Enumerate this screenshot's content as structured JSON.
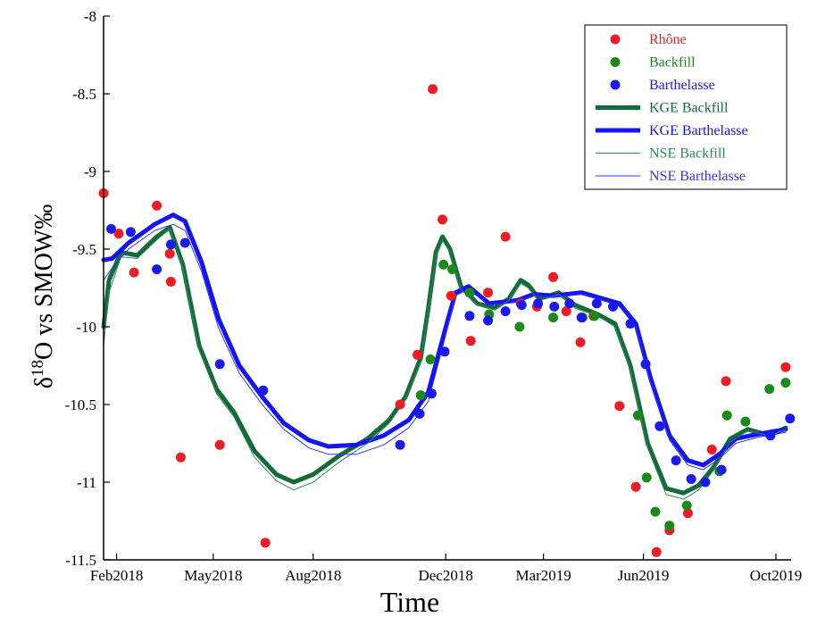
{
  "chart_data": {
    "type": "scatter",
    "xlabel": "Time",
    "ylabel": {
      "prefix": "δ",
      "superscript": "18",
      "suffix": "O vs SMOW‰"
    },
    "xlim": [
      "2018-01-20",
      "2019-10-15"
    ],
    "ylim": [
      -11.5,
      -8
    ],
    "x_ticks": [
      {
        "date": "2018-02-01",
        "label": "Feb2018"
      },
      {
        "date": "2018-05-01",
        "label": "May2018"
      },
      {
        "date": "2018-08-01",
        "label": "Aug2018"
      },
      {
        "date": "2018-12-01",
        "label": "Dec2018"
      },
      {
        "date": "2019-03-01",
        "label": "Mar2019"
      },
      {
        "date": "2019-06-01",
        "label": "Jun2019"
      },
      {
        "date": "2019-10-01",
        "label": "Oct2019"
      }
    ],
    "y_ticks": [
      -11.5,
      -11,
      -10.5,
      -10,
      -9.5,
      -9,
      -8.5,
      -8
    ],
    "y_tick_labels": [
      "-11.5",
      "-11",
      "-10.5",
      "-10",
      "-9.5",
      "-9",
      "-8.5",
      "-8"
    ],
    "grid": false,
    "legend_position": "top-right",
    "colors": {
      "rhone": "#ee1c25",
      "backfill": "#1a8a1a",
      "barthelasse": "#1a1aee",
      "kge_backfill": "#136b3a",
      "kge_barthelasse": "#1414f0",
      "nse_backfill": "#2a8a55",
      "nse_barthelasse": "#3333ee"
    },
    "legend": [
      {
        "label": "Rhône",
        "kind": "marker",
        "color": "#ee1c25"
      },
      {
        "label": "Backfill",
        "kind": "marker",
        "color": "#1a8a1a"
      },
      {
        "label": "Barthelasse",
        "kind": "marker",
        "color": "#1a1aee"
      },
      {
        "label": "KGE Backfill",
        "kind": "thick-line",
        "color": "#136b3a"
      },
      {
        "label": "KGE Barthelasse",
        "kind": "thick-line",
        "color": "#1414f0"
      },
      {
        "label": "NSE Backfill",
        "kind": "thin-line",
        "color": "#2a8a55"
      },
      {
        "label": "NSE Barthelasse",
        "kind": "thin-line",
        "color": "#3333ee"
      }
    ],
    "scatter_series": [
      {
        "name": "Rhône",
        "color": "#ee1c25",
        "points": [
          [
            "2018-01-20",
            -9.14
          ],
          [
            "2018-02-03",
            -9.4
          ],
          [
            "2018-02-17",
            -9.65
          ],
          [
            "2018-03-10",
            -9.22
          ],
          [
            "2018-03-22",
            -9.53
          ],
          [
            "2018-03-23",
            -9.71
          ],
          [
            "2018-04-01",
            -10.84
          ],
          [
            "2018-05-07",
            -10.76
          ],
          [
            "2018-06-18",
            -11.39
          ],
          [
            "2018-10-20",
            -10.5
          ],
          [
            "2018-11-05",
            -10.18
          ],
          [
            "2018-11-19",
            -8.47
          ],
          [
            "2018-11-28",
            -9.31
          ],
          [
            "2018-12-06",
            -9.8
          ],
          [
            "2018-12-24",
            -10.09
          ],
          [
            "2019-01-09",
            -9.78
          ],
          [
            "2019-01-25",
            -9.42
          ],
          [
            "2019-02-08",
            -9.85
          ],
          [
            "2019-02-23",
            -9.87
          ],
          [
            "2019-03-10",
            -9.68
          ],
          [
            "2019-03-22",
            -9.9
          ],
          [
            "2019-04-04",
            -10.1
          ],
          [
            "2019-04-16",
            -9.93
          ],
          [
            "2019-05-10",
            -10.51
          ],
          [
            "2019-05-25",
            -11.03
          ],
          [
            "2019-06-13",
            -11.45
          ],
          [
            "2019-06-25",
            -11.31
          ],
          [
            "2019-07-12",
            -11.2
          ],
          [
            "2019-08-03",
            -10.79
          ],
          [
            "2019-08-16",
            -10.35
          ],
          [
            "2019-10-10",
            -10.26
          ]
        ]
      },
      {
        "name": "Backfill",
        "color": "#1a8a1a",
        "points": [
          [
            "2018-11-08",
            -10.44
          ],
          [
            "2018-11-17",
            -10.21
          ],
          [
            "2018-11-29",
            -9.6
          ],
          [
            "2018-12-07",
            -9.63
          ],
          [
            "2018-12-23",
            -9.78
          ],
          [
            "2019-01-10",
            -9.92
          ],
          [
            "2019-02-07",
            -10.0
          ],
          [
            "2019-03-10",
            -9.94
          ],
          [
            "2019-04-06",
            -9.94
          ],
          [
            "2019-04-17",
            -9.93
          ],
          [
            "2019-05-27",
            -10.57
          ],
          [
            "2019-06-04",
            -10.97
          ],
          [
            "2019-06-12",
            -11.19
          ],
          [
            "2019-06-25",
            -11.28
          ],
          [
            "2019-07-11",
            -11.15
          ],
          [
            "2019-08-10",
            -10.93
          ],
          [
            "2019-08-17",
            -10.57
          ],
          [
            "2019-09-03",
            -10.61
          ],
          [
            "2019-09-25",
            -10.4
          ],
          [
            "2019-10-10",
            -10.36
          ]
        ]
      },
      {
        "name": "Barthelasse",
        "color": "#1a1aee",
        "points": [
          [
            "2018-01-27",
            -9.37
          ],
          [
            "2018-02-14",
            -9.39
          ],
          [
            "2018-03-10",
            -9.63
          ],
          [
            "2018-03-23",
            -9.47
          ],
          [
            "2018-04-05",
            -9.46
          ],
          [
            "2018-05-07",
            -10.24
          ],
          [
            "2018-06-16",
            -10.41
          ],
          [
            "2018-10-20",
            -10.76
          ],
          [
            "2018-11-07",
            -10.56
          ],
          [
            "2018-11-18",
            -10.43
          ],
          [
            "2018-11-30",
            -10.16
          ],
          [
            "2018-12-23",
            -9.93
          ],
          [
            "2019-01-09",
            -9.96
          ],
          [
            "2019-01-25",
            -9.9
          ],
          [
            "2019-02-09",
            -9.86
          ],
          [
            "2019-02-24",
            -9.85
          ],
          [
            "2019-03-11",
            -9.87
          ],
          [
            "2019-03-25",
            -9.85
          ],
          [
            "2019-04-05",
            -9.94
          ],
          [
            "2019-04-19",
            -9.85
          ],
          [
            "2019-05-04",
            -9.87
          ],
          [
            "2019-05-20",
            -9.98
          ],
          [
            "2019-06-03",
            -10.24
          ],
          [
            "2019-06-16",
            -10.64
          ],
          [
            "2019-07-01",
            -10.86
          ],
          [
            "2019-07-15",
            -10.98
          ],
          [
            "2019-07-28",
            -11.0
          ],
          [
            "2019-08-12",
            -10.92
          ],
          [
            "2019-09-26",
            -10.7
          ],
          [
            "2019-10-14",
            -10.59
          ]
        ]
      }
    ],
    "line_series": [
      {
        "name": "KGE Backfill",
        "color": "#136b3a",
        "width": 5,
        "points": [
          [
            "2018-01-20",
            -10.0
          ],
          [
            "2018-01-25",
            -9.7
          ],
          [
            "2018-02-05",
            -9.52
          ],
          [
            "2018-02-20",
            -9.54
          ],
          [
            "2018-03-10",
            -9.42
          ],
          [
            "2018-03-22",
            -9.36
          ],
          [
            "2018-04-03",
            -9.6
          ],
          [
            "2018-04-18",
            -10.12
          ],
          [
            "2018-05-04",
            -10.4
          ],
          [
            "2018-05-20",
            -10.55
          ],
          [
            "2018-06-08",
            -10.8
          ],
          [
            "2018-06-28",
            -10.95
          ],
          [
            "2018-07-14",
            -11.0
          ],
          [
            "2018-08-01",
            -10.95
          ],
          [
            "2018-08-25",
            -10.83
          ],
          [
            "2018-09-20",
            -10.72
          ],
          [
            "2018-10-10",
            -10.6
          ],
          [
            "2018-10-25",
            -10.45
          ],
          [
            "2018-11-08",
            -10.2
          ],
          [
            "2018-11-15",
            -9.88
          ],
          [
            "2018-11-22",
            -9.52
          ],
          [
            "2018-11-28",
            -9.42
          ],
          [
            "2018-12-05",
            -9.5
          ],
          [
            "2018-12-15",
            -9.74
          ],
          [
            "2018-12-30",
            -9.85
          ],
          [
            "2019-01-15",
            -9.88
          ],
          [
            "2019-01-28",
            -9.82
          ],
          [
            "2019-02-08",
            -9.7
          ],
          [
            "2019-02-15",
            -9.73
          ],
          [
            "2019-02-25",
            -9.82
          ],
          [
            "2019-03-15",
            -9.78
          ],
          [
            "2019-03-30",
            -9.86
          ],
          [
            "2019-04-20",
            -9.92
          ],
          [
            "2019-05-06",
            -9.98
          ],
          [
            "2019-05-20",
            -10.25
          ],
          [
            "2019-06-05",
            -10.75
          ],
          [
            "2019-06-22",
            -11.04
          ],
          [
            "2019-07-08",
            -11.07
          ],
          [
            "2019-07-22",
            -11.02
          ],
          [
            "2019-08-05",
            -10.9
          ],
          [
            "2019-08-20",
            -10.72
          ],
          [
            "2019-09-05",
            -10.66
          ],
          [
            "2019-09-25",
            -10.7
          ],
          [
            "2019-10-10",
            -10.65
          ]
        ]
      },
      {
        "name": "KGE Barthelasse",
        "color": "#1414f0",
        "width": 5,
        "points": [
          [
            "2018-01-20",
            -9.57
          ],
          [
            "2018-01-28",
            -9.56
          ],
          [
            "2018-02-12",
            -9.46
          ],
          [
            "2018-03-08",
            -9.34
          ],
          [
            "2018-03-25",
            -9.28
          ],
          [
            "2018-04-05",
            -9.32
          ],
          [
            "2018-04-20",
            -9.58
          ],
          [
            "2018-05-06",
            -9.95
          ],
          [
            "2018-05-25",
            -10.25
          ],
          [
            "2018-06-15",
            -10.45
          ],
          [
            "2018-07-05",
            -10.62
          ],
          [
            "2018-07-28",
            -10.73
          ],
          [
            "2018-08-15",
            -10.77
          ],
          [
            "2018-09-10",
            -10.76
          ],
          [
            "2018-10-05",
            -10.7
          ],
          [
            "2018-10-28",
            -10.6
          ],
          [
            "2018-11-15",
            -10.42
          ],
          [
            "2018-11-30",
            -10.03
          ],
          [
            "2018-12-10",
            -9.78
          ],
          [
            "2018-12-22",
            -9.74
          ],
          [
            "2019-01-10",
            -9.85
          ],
          [
            "2019-02-05",
            -9.83
          ],
          [
            "2019-02-20",
            -9.79
          ],
          [
            "2019-03-10",
            -9.8
          ],
          [
            "2019-04-05",
            -9.78
          ],
          [
            "2019-04-25",
            -9.82
          ],
          [
            "2019-05-10",
            -9.85
          ],
          [
            "2019-05-25",
            -9.98
          ],
          [
            "2019-06-08",
            -10.34
          ],
          [
            "2019-06-25",
            -10.7
          ],
          [
            "2019-07-12",
            -10.86
          ],
          [
            "2019-07-26",
            -10.89
          ],
          [
            "2019-08-10",
            -10.82
          ],
          [
            "2019-08-25",
            -10.72
          ],
          [
            "2019-09-15",
            -10.69
          ],
          [
            "2019-10-10",
            -10.66
          ]
        ]
      },
      {
        "name": "NSE Backfill",
        "color": "#2a8a55",
        "width": 1,
        "points": [
          [
            "2018-01-20",
            -10.12
          ],
          [
            "2018-01-25",
            -9.78
          ],
          [
            "2018-02-05",
            -9.55
          ],
          [
            "2018-02-20",
            -9.56
          ],
          [
            "2018-03-10",
            -9.44
          ],
          [
            "2018-03-22",
            -9.37
          ],
          [
            "2018-04-03",
            -9.62
          ],
          [
            "2018-04-18",
            -10.15
          ],
          [
            "2018-05-04",
            -10.43
          ],
          [
            "2018-05-20",
            -10.58
          ],
          [
            "2018-06-08",
            -10.84
          ],
          [
            "2018-06-28",
            -10.99
          ],
          [
            "2018-07-14",
            -11.05
          ],
          [
            "2018-08-01",
            -11.0
          ],
          [
            "2018-08-25",
            -10.87
          ],
          [
            "2018-09-20",
            -10.75
          ],
          [
            "2018-10-10",
            -10.62
          ],
          [
            "2018-10-25",
            -10.47
          ],
          [
            "2018-11-08",
            -10.22
          ],
          [
            "2018-11-15",
            -9.9
          ],
          [
            "2018-11-22",
            -9.54
          ],
          [
            "2018-11-28",
            -9.44
          ],
          [
            "2018-12-05",
            -9.52
          ],
          [
            "2018-12-15",
            -9.76
          ],
          [
            "2018-12-30",
            -9.86
          ],
          [
            "2019-01-15",
            -9.89
          ],
          [
            "2019-01-28",
            -9.83
          ],
          [
            "2019-02-08",
            -9.72
          ],
          [
            "2019-02-15",
            -9.75
          ],
          [
            "2019-02-25",
            -9.83
          ],
          [
            "2019-03-15",
            -9.79
          ],
          [
            "2019-03-30",
            -9.88
          ],
          [
            "2019-04-20",
            -9.93
          ],
          [
            "2019-05-06",
            -10.0
          ],
          [
            "2019-05-20",
            -10.28
          ],
          [
            "2019-06-05",
            -10.78
          ],
          [
            "2019-06-22",
            -11.08
          ],
          [
            "2019-07-08",
            -11.11
          ],
          [
            "2019-07-22",
            -11.05
          ],
          [
            "2019-08-05",
            -10.92
          ],
          [
            "2019-08-20",
            -10.74
          ],
          [
            "2019-09-05",
            -10.67
          ],
          [
            "2019-09-25",
            -10.7
          ],
          [
            "2019-10-10",
            -10.66
          ]
        ]
      },
      {
        "name": "NSE Barthelasse",
        "color": "#3333ee",
        "width": 1,
        "points": [
          [
            "2018-01-20",
            -9.7
          ],
          [
            "2018-01-28",
            -9.62
          ],
          [
            "2018-02-12",
            -9.5
          ],
          [
            "2018-03-08",
            -9.38
          ],
          [
            "2018-03-25",
            -9.34
          ],
          [
            "2018-04-05",
            -9.38
          ],
          [
            "2018-04-20",
            -9.64
          ],
          [
            "2018-05-06",
            -10.01
          ],
          [
            "2018-05-25",
            -10.3
          ],
          [
            "2018-06-15",
            -10.5
          ],
          [
            "2018-07-05",
            -10.66
          ],
          [
            "2018-07-28",
            -10.78
          ],
          [
            "2018-08-15",
            -10.82
          ],
          [
            "2018-09-10",
            -10.82
          ],
          [
            "2018-10-05",
            -10.76
          ],
          [
            "2018-10-28",
            -10.65
          ],
          [
            "2018-11-15",
            -10.48
          ],
          [
            "2018-11-30",
            -10.08
          ],
          [
            "2018-12-10",
            -9.8
          ],
          [
            "2018-12-22",
            -9.76
          ],
          [
            "2019-01-10",
            -9.86
          ],
          [
            "2019-02-05",
            -9.84
          ],
          [
            "2019-02-20",
            -9.8
          ],
          [
            "2019-03-10",
            -9.81
          ],
          [
            "2019-04-05",
            -9.79
          ],
          [
            "2019-04-25",
            -9.83
          ],
          [
            "2019-05-10",
            -9.87
          ],
          [
            "2019-05-25",
            -10.0
          ],
          [
            "2019-06-08",
            -10.37
          ],
          [
            "2019-06-25",
            -10.73
          ],
          [
            "2019-07-12",
            -10.89
          ],
          [
            "2019-07-26",
            -10.92
          ],
          [
            "2019-08-10",
            -10.85
          ],
          [
            "2019-08-25",
            -10.75
          ],
          [
            "2019-09-15",
            -10.71
          ],
          [
            "2019-10-10",
            -10.68
          ]
        ]
      }
    ]
  }
}
